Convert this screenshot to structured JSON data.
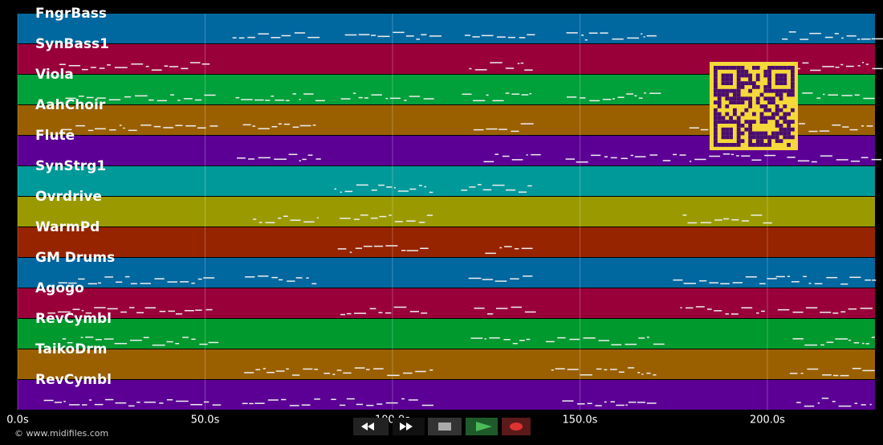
{
  "tracks": [
    {
      "name": "FngrBass",
      "color": "#00679f"
    },
    {
      "name": "SynBass1",
      "color": "#99003a"
    },
    {
      "name": "Viola",
      "color": "#00a03a"
    },
    {
      "name": "AahChoir",
      "color": "#9a6000"
    },
    {
      "name": "Flute",
      "color": "#5c0095"
    },
    {
      "name": "SynStrg1",
      "color": "#009999"
    },
    {
      "name": "Ovrdrive",
      "color": "#9a9a00"
    },
    {
      "name": "WarmPd",
      "color": "#962400"
    },
    {
      "name": "GM Drums",
      "color": "#00679f"
    },
    {
      "name": "Agogo",
      "color": "#99003a"
    },
    {
      "name": "RevCymbl",
      "color": "#00992e"
    },
    {
      "name": "TaikoDrm",
      "color": "#9a6000"
    },
    {
      "name": "RevCymbl",
      "color": "#5c0095"
    }
  ],
  "timeline": {
    "xlim": [
      0,
      228.7
    ],
    "xticks": [
      {
        "value": 0,
        "label": "0.0s"
      },
      {
        "value": 50,
        "label": "50.0s"
      },
      {
        "value": 100,
        "label": "100.0s"
      },
      {
        "value": 150,
        "label": "150.0s"
      },
      {
        "value": 200,
        "label": "200.0s"
      }
    ]
  },
  "footer": {
    "copyright": "© www.midifiles.com"
  }
}
